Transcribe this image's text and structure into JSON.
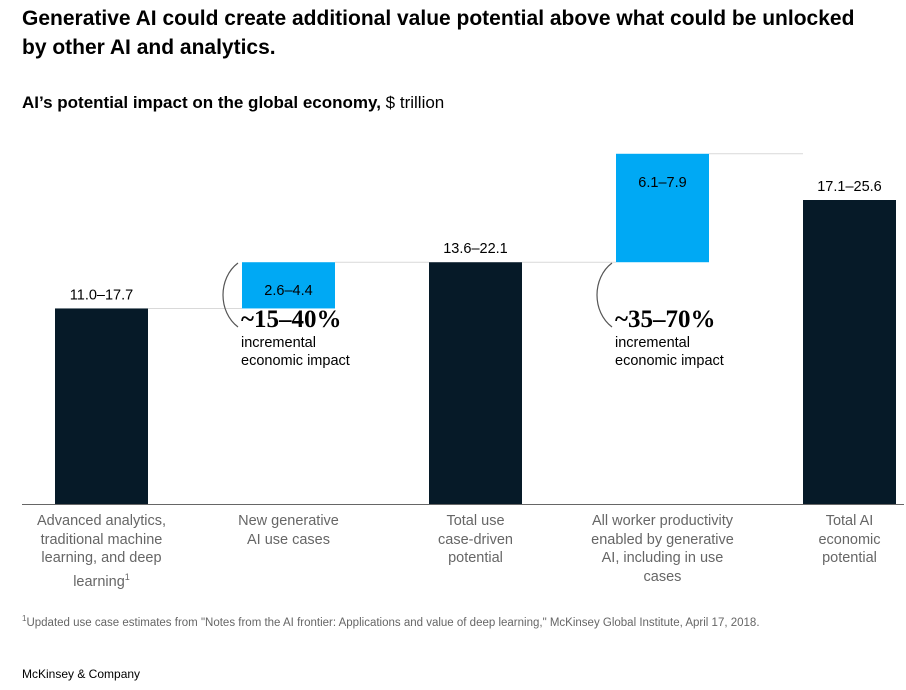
{
  "headline": "Generative AI could create additional value potential above what could be unlocked by other AI and analytics.",
  "subtitle_bold": "AI’s potential impact on the global economy,",
  "subtitle_unit": "$ trillion",
  "colors": {
    "total": "#061a28",
    "increment": "#00a9f4",
    "connector": "#d9d9d9",
    "axis": "#666666"
  },
  "chart_data": {
    "type": "bar",
    "variant": "waterfall",
    "title": "AI’s potential impact on the global economy",
    "unit": "$ trillion",
    "categories": [
      "Advanced analytics, traditional machine learning, and deep learning",
      "New generative AI use cases",
      "Total use case-driven potential",
      "All worker productivity enabled by generative AI, including in use cases",
      "Total AI economic potential"
    ],
    "bars": [
      {
        "kind": "total",
        "low": 11.0,
        "high": 17.7,
        "label": "11.0–17.7",
        "base": 0
      },
      {
        "kind": "increment",
        "low": 2.6,
        "high": 4.4,
        "label": "2.6–4.4",
        "base": 11.0
      },
      {
        "kind": "total",
        "low": 13.6,
        "high": 22.1,
        "label": "13.6–22.1",
        "base": 0
      },
      {
        "kind": "increment",
        "low": 6.1,
        "high": 7.9,
        "label": "6.1–7.9",
        "base": 13.6
      },
      {
        "kind": "total",
        "low": 17.1,
        "high": 25.6,
        "label": "17.1–25.6",
        "base": 0
      }
    ],
    "annotations": [
      {
        "bar": 1,
        "value": "~15–40%",
        "text": "incremental economic impact"
      },
      {
        "bar": 3,
        "value": "~35–70%",
        "text": "incremental economic impact"
      }
    ]
  },
  "categories_lines": [
    [
      "Advanced analytics,",
      "traditional machine",
      "learning, and deep",
      "learning"
    ],
    [
      "New generative",
      "AI use cases"
    ],
    [
      "Total use",
      "case-driven",
      "potential"
    ],
    [
      "All worker productivity",
      "enabled by generative",
      "AI, including in use",
      "cases"
    ],
    [
      "Total AI",
      "economic",
      "potential"
    ]
  ],
  "cat_sup": "1",
  "footnote_mark": "1",
  "footnote": "Updated use case estimates from \"Notes from the AI frontier: Applications and value of deep learning,\" McKinsey Global Institute, April 17, 2018.",
  "brand": "McKinsey & Company"
}
